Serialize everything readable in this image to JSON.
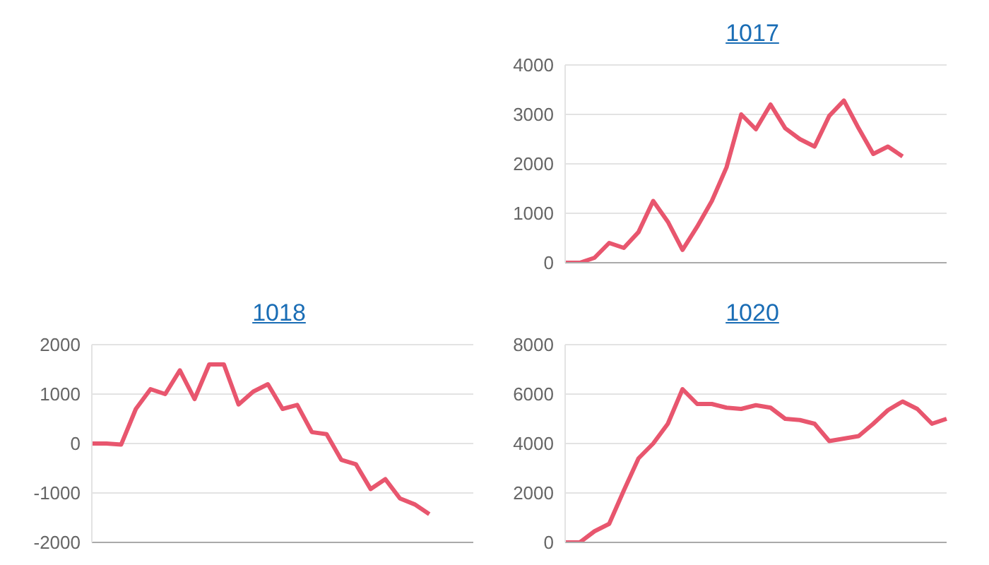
{
  "chart_data": [
    {
      "type": "line",
      "title": "1017",
      "categories": [
        null,
        null,
        null,
        null,
        null,
        null,
        null,
        null,
        null,
        null,
        null,
        null,
        null,
        null,
        null,
        null,
        null,
        null,
        null,
        null,
        null,
        null,
        null,
        null,
        null,
        null,
        null
      ],
      "series": [
        {
          "color": "#e8566e",
          "values": [
            0,
            0,
            100,
            400,
            300,
            620,
            1250,
            830,
            260,
            730,
            1250,
            1930,
            3000,
            2700,
            3200,
            2720,
            2500,
            2350,
            2970,
            3280,
            2720,
            2200,
            2350,
            2150,
            null,
            null,
            null
          ]
        }
      ],
      "ylim": [
        0,
        4000
      ],
      "yticks": [
        0,
        1000,
        2000,
        3000,
        4000
      ],
      "grid": "y",
      "legend": false,
      "marker": "none",
      "tick_labels": "y"
    },
    {
      "type": "line",
      "title": "1018",
      "categories": [
        null,
        null,
        null,
        null,
        null,
        null,
        null,
        null,
        null,
        null,
        null,
        null,
        null,
        null,
        null,
        null,
        null,
        null,
        null,
        null,
        null,
        null,
        null,
        null,
        null,
        null,
        null
      ],
      "series": [
        {
          "color": "#e8566e",
          "values": [
            0,
            0,
            -20,
            700,
            1100,
            1000,
            1480,
            900,
            1600,
            1600,
            790,
            1050,
            1200,
            700,
            780,
            230,
            190,
            -330,
            -420,
            -920,
            -720,
            -1110,
            -1230,
            -1430,
            null,
            null,
            null
          ]
        }
      ],
      "ylim": [
        -2000,
        2000
      ],
      "yticks": [
        -2000,
        -1000,
        0,
        1000,
        2000
      ],
      "grid": "y",
      "legend": false,
      "marker": "none",
      "tick_labels": "y"
    },
    {
      "type": "line",
      "title": "1020",
      "categories": [
        null,
        null,
        null,
        null,
        null,
        null,
        null,
        null,
        null,
        null,
        null,
        null,
        null,
        null,
        null,
        null,
        null,
        null,
        null,
        null,
        null,
        null,
        null,
        null,
        null,
        null,
        null
      ],
      "series": [
        {
          "color": "#e8566e",
          "values": [
            0,
            0,
            450,
            750,
            2100,
            3400,
            4000,
            4800,
            6200,
            5600,
            5600,
            5450,
            5400,
            5550,
            5450,
            5000,
            4950,
            4800,
            4100,
            4200,
            4300,
            4800,
            5350,
            5700,
            5400,
            4800,
            5000
          ]
        }
      ],
      "ylim": [
        0,
        8000
      ],
      "yticks": [
        0,
        2000,
        4000,
        6000,
        8000
      ],
      "grid": "y",
      "legend": false,
      "marker": "none",
      "tick_labels": "y"
    }
  ]
}
